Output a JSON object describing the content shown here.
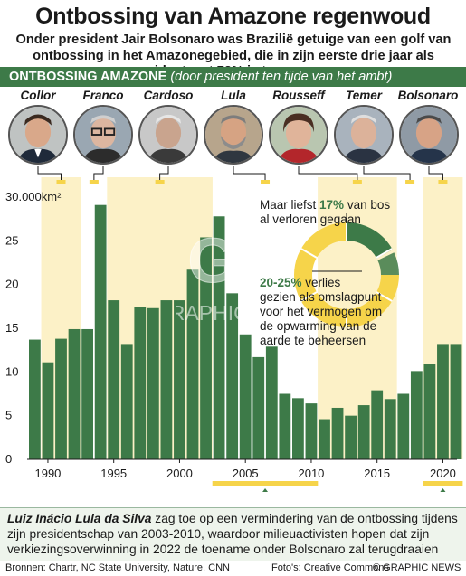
{
  "header": {
    "title": "Ontbossing van Amazone regenwoud",
    "subtitle": "Onder president Jair Bolsonaro was Brazilië getuige van een golf van ontbossing in het Amazonegebied, die in zijn eerste drie jaar als president met 72% is toegenomen"
  },
  "section_bar": {
    "label": "ONTBOSSING AMAZONE",
    "note": "(door president ten tijde van het ambt)"
  },
  "presidents": [
    {
      "name": "Collor",
      "start": 1990,
      "end": 1992
    },
    {
      "name": "Franco",
      "start": 1993,
      "end": 1994
    },
    {
      "name": "Cardoso",
      "start": 1995,
      "end": 2002
    },
    {
      "name": "Lula",
      "start": 2003,
      "end": 2010
    },
    {
      "name": "Rousseff",
      "start": 2011,
      "end": 2016
    },
    {
      "name": "Temer",
      "start": 2017,
      "end": 2018
    },
    {
      "name": "Bolsonaro",
      "start": 2019,
      "end": 2021
    }
  ],
  "chart_data": {
    "type": "bar",
    "y_unit": "km²",
    "ylim": [
      0,
      30000
    ],
    "y_ticks": [
      0,
      5000,
      10000,
      15000,
      20000,
      25000,
      30000
    ],
    "y_tick_labels": [
      "0",
      "5",
      "10",
      "15",
      "20",
      "25",
      "30.000km²"
    ],
    "x_tick_labels": [
      "1990",
      "1995",
      "2000",
      "2005",
      "2010",
      "2015",
      "2020"
    ],
    "x": [
      1989,
      1990,
      1991,
      1992,
      1993,
      1994,
      1995,
      1996,
      1997,
      1998,
      1999,
      2000,
      2001,
      2002,
      2003,
      2004,
      2005,
      2006,
      2007,
      2008,
      2009,
      2010,
      2011,
      2012,
      2013,
      2014,
      2015,
      2016,
      2017,
      2018,
      2019,
      2020,
      2021
    ],
    "values": [
      13700,
      11100,
      13800,
      14900,
      14900,
      29100,
      18200,
      13200,
      17400,
      17300,
      18200,
      18200,
      21700,
      25400,
      27800,
      19000,
      14300,
      11700,
      12900,
      7500,
      7000,
      6400,
      4600,
      5900,
      5000,
      6200,
      7900,
      6900,
      7500,
      10100,
      10900,
      13200,
      13200
    ],
    "bar_color": "#3d7a48",
    "grid": false,
    "highlight_color": "#f6d44a"
  },
  "inset": {
    "fact1_prefix": "Maar liefst ",
    "fact1_value": "17%",
    "fact1_line1_suffix": " van bos",
    "fact1_line2": "al verloren gegaan",
    "fact2_value": "20-25%",
    "fact2_line1_suffix": " verlies",
    "fact2_lines": [
      "gezien als omslagpunt",
      "voor het vermogen om",
      "de opwarming van de",
      "aarde te beheersen"
    ],
    "donut_lost_fraction": 0.17,
    "tipping_fraction_range": [
      0.2,
      0.25
    ]
  },
  "watermark": {
    "initials": "GN",
    "label": "GRAPHIC NEWS"
  },
  "footer": {
    "highlight": "Luiz Inácio Lula da Silva",
    "text": " zag toe op een vermindering van de ontbossing tijdens zijn presidentschap van 2003-2010, waardoor milieuactivisten hopen dat zijn verkiezingsoverwinning in 2022 de toename onder Bolsonaro zal terugdraaien"
  },
  "credits": {
    "sources": "Bronnen: Chartr, NC State University, Nature, CNN",
    "photo": "Foto's: Creative Commons",
    "copyright": "© GRAPHIC NEWS"
  },
  "colors": {
    "green": "#3d7a48",
    "yellow": "#f6d44a",
    "band": "#fbecb4"
  }
}
